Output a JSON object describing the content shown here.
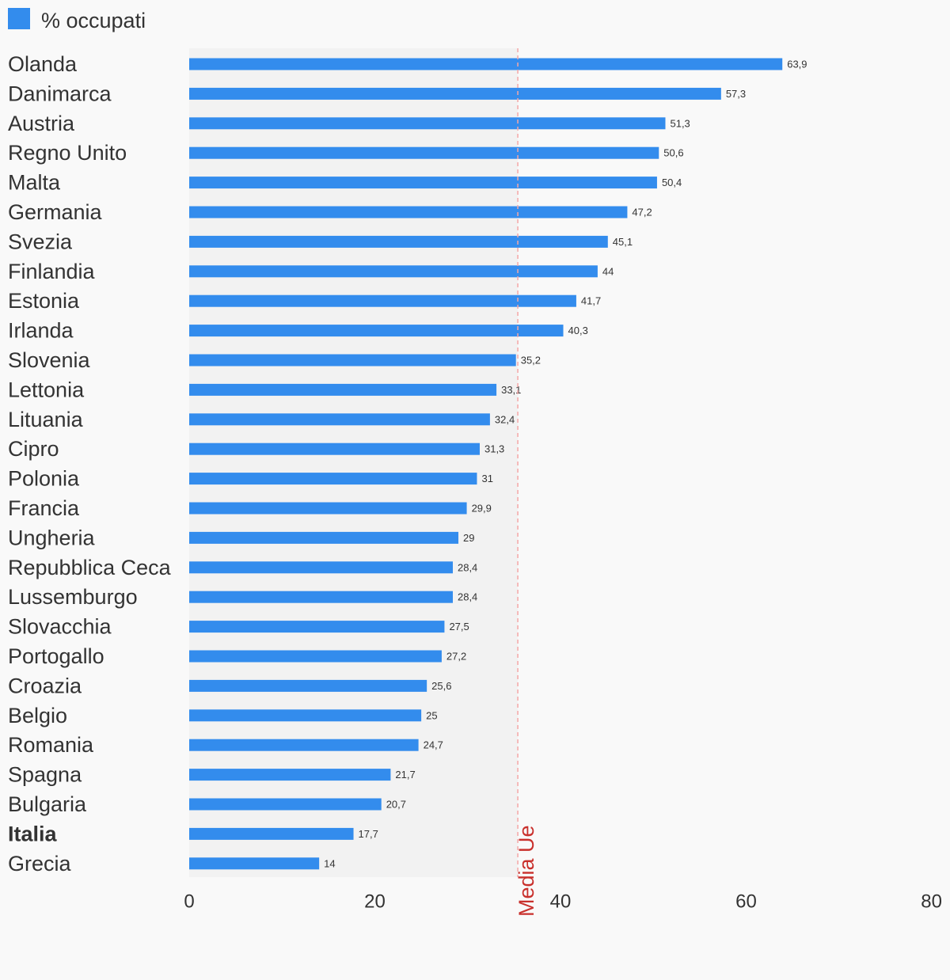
{
  "legend": {
    "label": "% occupati"
  },
  "colors": {
    "bar": "#338ced",
    "plot_background": "#f2f2f2",
    "reference_line": "#f4a6a6",
    "reference_text": "#c9302c"
  },
  "chart_data": {
    "type": "bar",
    "orientation": "horizontal",
    "categories": [
      "Olanda",
      "Danimarca",
      "Austria",
      "Regno Unito",
      "Malta",
      "Germania",
      "Svezia",
      "Finlandia",
      "Estonia",
      "Irlanda",
      "Slovenia",
      "Lettonia",
      "Lituania",
      "Cipro",
      "Polonia",
      "Francia",
      "Ungheria",
      "Repubblica Ceca",
      "Lussemburgo",
      "Slovacchia",
      "Portogallo",
      "Croazia",
      "Belgio",
      "Romania",
      "Spagna",
      "Bulgaria",
      "Italia",
      "Grecia"
    ],
    "values": [
      63.9,
      57.3,
      51.3,
      50.6,
      50.4,
      47.2,
      45.1,
      44,
      41.7,
      40.3,
      35.2,
      33.1,
      32.4,
      31.3,
      31,
      29.9,
      29,
      28.4,
      28.4,
      27.5,
      27.2,
      25.6,
      25,
      24.7,
      21.7,
      20.7,
      17.7,
      14
    ],
    "value_labels": [
      "63,9",
      "57,3",
      "51,3",
      "50,6",
      "50,4",
      "47,2",
      "45,1",
      "44",
      "41,7",
      "40,3",
      "35,2",
      "33,1",
      "32,4",
      "31,3",
      "31",
      "29,9",
      "29",
      "28,4",
      "28,4",
      "27,5",
      "27,2",
      "25,6",
      "25",
      "24,7",
      "21,7",
      "20,7",
      "17,7",
      "14"
    ],
    "series": [
      {
        "name": "% occupati"
      }
    ],
    "highlight_category": "Italia",
    "xlim": [
      0,
      80
    ],
    "xticks": [
      0,
      20,
      40,
      60,
      80
    ],
    "xtick_labels": [
      "0",
      "20",
      "40",
      "60",
      "80"
    ],
    "reference_line": {
      "label": "Media Ue",
      "value": 35.4
    },
    "legend_position": "top-left",
    "grid": false
  }
}
